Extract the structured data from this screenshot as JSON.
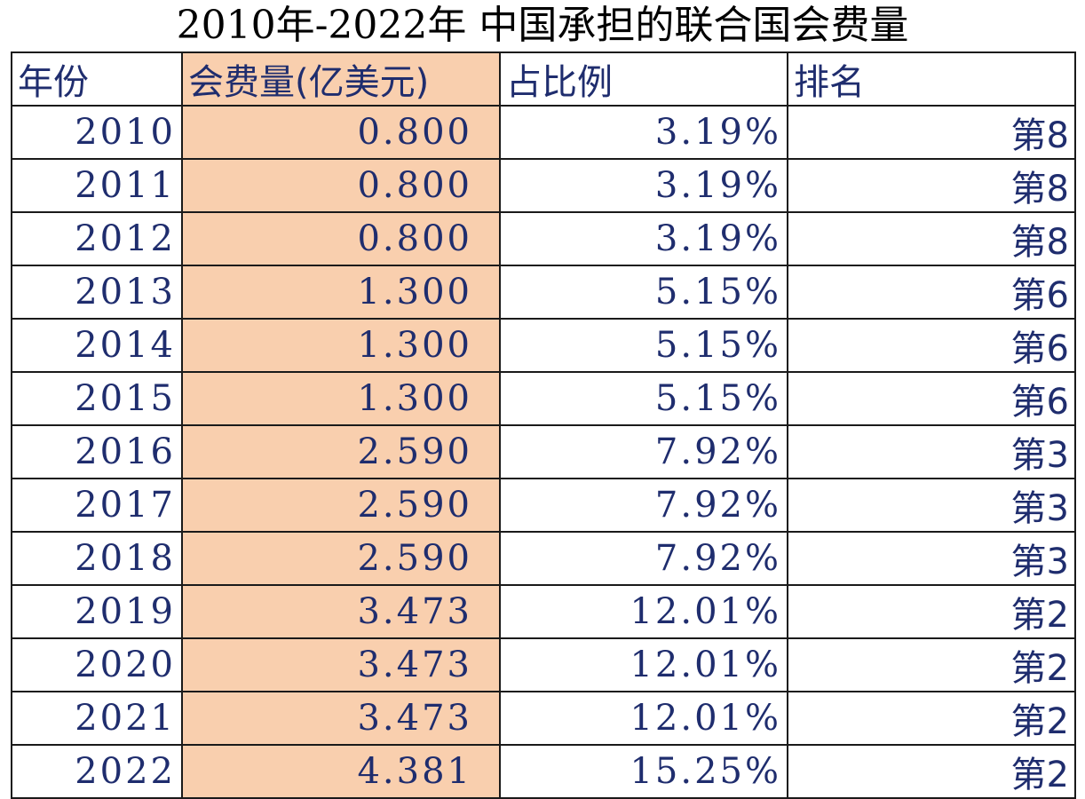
{
  "title": "2010年-2022年 中国承担的联合国会费量",
  "colors": {
    "text": "#1f2d6e",
    "highlight_column": "#f9cfae",
    "border": "#1a1a1a"
  },
  "chart_data": {
    "type": "table",
    "title": "2010年-2022年 中国承担的联合国会费量",
    "columns": [
      "年份",
      "会费量(亿美元)",
      "占比例",
      "排名"
    ],
    "rows": [
      {
        "year": "2010",
        "fee": "0.800",
        "share": "3.19%",
        "rank": "第8"
      },
      {
        "year": "2011",
        "fee": "0.800",
        "share": "3.19%",
        "rank": "第8"
      },
      {
        "year": "2012",
        "fee": "0.800",
        "share": "3.19%",
        "rank": "第8"
      },
      {
        "year": "2013",
        "fee": "1.300",
        "share": "5.15%",
        "rank": "第6"
      },
      {
        "year": "2014",
        "fee": "1.300",
        "share": "5.15%",
        "rank": "第6"
      },
      {
        "year": "2015",
        "fee": "1.300",
        "share": "5.15%",
        "rank": "第6"
      },
      {
        "year": "2016",
        "fee": "2.590",
        "share": "7.92%",
        "rank": "第3"
      },
      {
        "year": "2017",
        "fee": "2.590",
        "share": "7.92%",
        "rank": "第3"
      },
      {
        "year": "2018",
        "fee": "2.590",
        "share": "7.92%",
        "rank": "第3"
      },
      {
        "year": "2019",
        "fee": "3.473",
        "share": "12.01%",
        "rank": "第2"
      },
      {
        "year": "2020",
        "fee": "3.473",
        "share": "12.01%",
        "rank": "第2"
      },
      {
        "year": "2021",
        "fee": "3.473",
        "share": "12.01%",
        "rank": "第2"
      },
      {
        "year": "2022",
        "fee": "4.381",
        "share": "15.25%",
        "rank": "第2"
      }
    ]
  }
}
